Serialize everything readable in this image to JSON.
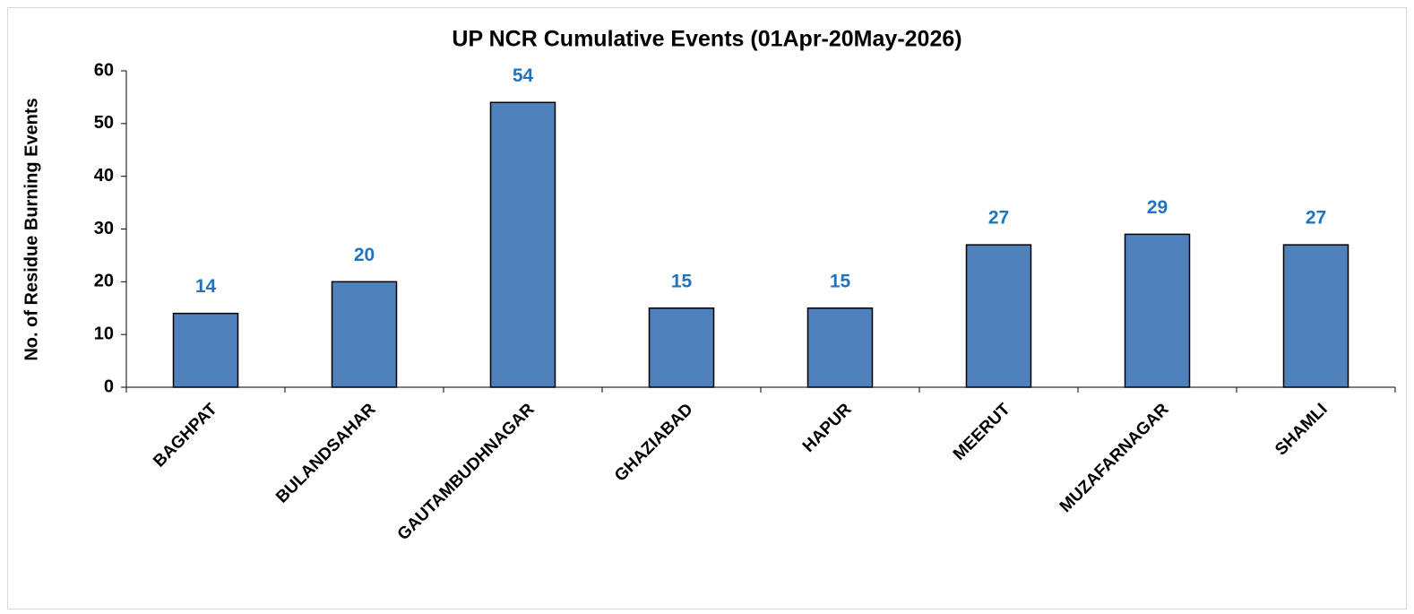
{
  "chart_data": {
    "type": "bar",
    "title": "UP NCR Cumulative Events (01Apr-20May-2026)",
    "y_label": "No. of Residue Burning Events",
    "categories": [
      "BAGHPAT",
      "BULANDSAHAR",
      "GAUTAMBUDHNAGAR",
      "GHAZIABAD",
      "HAPUR",
      "MEERUT",
      "MUZAFARNAGAR",
      "SHAMLI"
    ],
    "values": [
      14,
      20,
      54,
      15,
      15,
      27,
      29,
      27
    ],
    "color": "#4f81bd",
    "label_color": "#1f74c0",
    "ylim": [
      0,
      60
    ],
    "yticks": [
      0,
      10,
      20,
      30,
      40,
      50,
      60
    ],
    "grid": false
  }
}
